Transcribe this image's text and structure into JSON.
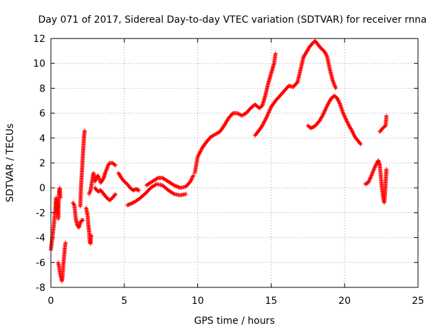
{
  "chart_data": {
    "type": "scatter",
    "title": "Day 071 of 2017, Sidereal Day-to-day VTEC variation (SDTVAR) for receiver rnna",
    "xlabel": "GPS time / hours",
    "ylabel": "SDTVAR / TECUs",
    "xlim": [
      0,
      25
    ],
    "ylim": [
      -8,
      12
    ],
    "x_ticks": [
      0,
      5,
      10,
      15,
      20,
      25
    ],
    "y_ticks": [
      -8,
      -6,
      -4,
      -2,
      0,
      2,
      4,
      6,
      8,
      10,
      12
    ],
    "grid": true,
    "marker": "+",
    "color": "#ff0000",
    "segments": [
      [
        [
          0.0,
          -5.0
        ],
        [
          0.1,
          -4.0
        ],
        [
          0.2,
          -3.0
        ],
        [
          0.3,
          -1.8
        ],
        [
          0.35,
          -0.8
        ],
        [
          0.4,
          -2.0
        ],
        [
          0.45,
          -1.0
        ],
        [
          0.5,
          -2.5
        ],
        [
          0.55,
          -0.5
        ],
        [
          0.6,
          0.0
        ],
        [
          0.65,
          -0.8
        ]
      ],
      [
        [
          0.5,
          -6.0
        ],
        [
          0.55,
          -6.3
        ],
        [
          0.6,
          -6.7
        ],
        [
          0.65,
          -7.0
        ],
        [
          0.7,
          -7.2
        ],
        [
          0.75,
          -7.5
        ],
        [
          0.8,
          -7.0
        ],
        [
          0.85,
          -6.2
        ],
        [
          0.9,
          -5.5
        ],
        [
          0.95,
          -4.8
        ],
        [
          1.0,
          -4.4
        ]
      ],
      [
        [
          1.5,
          -1.2
        ],
        [
          1.6,
          -1.4
        ],
        [
          1.7,
          -2.5
        ],
        [
          1.8,
          -3.0
        ],
        [
          1.9,
          -3.2
        ],
        [
          2.0,
          -2.8
        ],
        [
          2.1,
          -2.6
        ],
        [
          2.2,
          -2.6
        ]
      ],
      [
        [
          2.0,
          -1.5
        ],
        [
          2.05,
          0.0
        ],
        [
          2.1,
          1.0
        ],
        [
          2.15,
          2.0
        ],
        [
          2.2,
          3.0
        ],
        [
          2.25,
          4.0
        ],
        [
          2.3,
          4.6
        ]
      ],
      [
        [
          2.4,
          -1.6
        ],
        [
          2.5,
          -2.2
        ],
        [
          2.55,
          -3.0
        ],
        [
          2.6,
          -3.5
        ],
        [
          2.65,
          -4.3
        ],
        [
          2.7,
          -4.5
        ],
        [
          2.75,
          -3.8
        ]
      ],
      [
        [
          2.6,
          -0.5
        ],
        [
          2.7,
          -0.2
        ],
        [
          2.8,
          0.5
        ],
        [
          2.9,
          1.2
        ],
        [
          3.0,
          0.5
        ],
        [
          3.1,
          0.8
        ],
        [
          3.2,
          1.0
        ],
        [
          3.3,
          0.7
        ],
        [
          3.4,
          0.4
        ],
        [
          3.5,
          0.6
        ],
        [
          3.6,
          0.8
        ],
        [
          3.7,
          1.2
        ],
        [
          3.8,
          1.5
        ],
        [
          3.9,
          1.8
        ],
        [
          4.0,
          2.0
        ],
        [
          4.2,
          2.0
        ],
        [
          4.4,
          1.8
        ]
      ],
      [
        [
          3.0,
          0.0
        ],
        [
          3.2,
          -0.3
        ],
        [
          3.4,
          -0.2
        ],
        [
          3.6,
          -0.5
        ],
        [
          3.8,
          -0.8
        ],
        [
          4.0,
          -1.0
        ],
        [
          4.2,
          -0.8
        ],
        [
          4.4,
          -0.5
        ]
      ],
      [
        [
          4.6,
          1.2
        ],
        [
          4.8,
          0.8
        ],
        [
          5.0,
          0.5
        ],
        [
          5.2,
          0.3
        ],
        [
          5.4,
          0.0
        ],
        [
          5.6,
          -0.2
        ],
        [
          5.8,
          -0.1
        ],
        [
          6.0,
          -0.2
        ]
      ],
      [
        [
          5.2,
          -1.4
        ],
        [
          5.6,
          -1.2
        ],
        [
          6.0,
          -0.9
        ],
        [
          6.4,
          -0.5
        ],
        [
          6.8,
          0.0
        ],
        [
          7.2,
          0.3
        ],
        [
          7.6,
          0.2
        ],
        [
          8.0,
          -0.2
        ],
        [
          8.4,
          -0.5
        ],
        [
          8.8,
          -0.6
        ],
        [
          9.2,
          -0.5
        ]
      ],
      [
        [
          6.5,
          0.2
        ],
        [
          6.9,
          0.5
        ],
        [
          7.3,
          0.8
        ],
        [
          7.6,
          0.8
        ],
        [
          8.0,
          0.5
        ],
        [
          8.4,
          0.2
        ],
        [
          8.8,
          0.0
        ],
        [
          9.2,
          0.1
        ],
        [
          9.5,
          0.5
        ],
        [
          9.7,
          1.0
        ]
      ],
      [
        [
          9.8,
          1.2
        ],
        [
          10.0,
          2.5
        ],
        [
          10.3,
          3.2
        ],
        [
          10.6,
          3.7
        ],
        [
          10.9,
          4.1
        ],
        [
          11.2,
          4.3
        ],
        [
          11.5,
          4.5
        ],
        [
          11.8,
          5.0
        ],
        [
          12.1,
          5.6
        ],
        [
          12.4,
          6.0
        ],
        [
          12.7,
          6.0
        ],
        [
          13.0,
          5.8
        ],
        [
          13.3,
          6.0
        ],
        [
          13.6,
          6.4
        ],
        [
          13.9,
          6.7
        ],
        [
          14.2,
          6.4
        ],
        [
          14.4,
          6.6
        ],
        [
          14.6,
          7.4
        ],
        [
          14.8,
          8.4
        ],
        [
          15.0,
          9.2
        ],
        [
          15.2,
          10.0
        ],
        [
          15.3,
          10.8
        ]
      ],
      [
        [
          13.9,
          4.2
        ],
        [
          14.1,
          4.5
        ],
        [
          14.4,
          5.0
        ],
        [
          14.7,
          5.7
        ],
        [
          15.0,
          6.5
        ],
        [
          15.3,
          7.0
        ],
        [
          15.6,
          7.4
        ],
        [
          15.9,
          7.8
        ],
        [
          16.2,
          8.2
        ],
        [
          16.5,
          8.1
        ],
        [
          16.8,
          8.5
        ],
        [
          17.0,
          9.5
        ],
        [
          17.2,
          10.5
        ],
        [
          17.4,
          10.9
        ],
        [
          17.6,
          11.3
        ],
        [
          17.8,
          11.6
        ],
        [
          18.0,
          11.8
        ],
        [
          18.2,
          11.5
        ],
        [
          18.4,
          11.2
        ],
        [
          18.6,
          11.0
        ],
        [
          18.8,
          10.6
        ],
        [
          19.0,
          9.5
        ],
        [
          19.2,
          8.6
        ],
        [
          19.4,
          8.0
        ]
      ],
      [
        [
          17.5,
          5.0
        ],
        [
          17.7,
          4.8
        ],
        [
          17.9,
          4.9
        ],
        [
          18.1,
          5.1
        ],
        [
          18.3,
          5.4
        ],
        [
          18.5,
          5.8
        ],
        [
          18.7,
          6.3
        ],
        [
          18.9,
          6.8
        ],
        [
          19.1,
          7.2
        ],
        [
          19.3,
          7.4
        ],
        [
          19.5,
          7.2
        ],
        [
          19.7,
          6.7
        ],
        [
          19.9,
          6.0
        ],
        [
          20.1,
          5.5
        ],
        [
          20.3,
          5.0
        ],
        [
          20.5,
          4.6
        ],
        [
          20.7,
          4.1
        ],
        [
          20.9,
          3.8
        ],
        [
          21.1,
          3.5
        ]
      ],
      [
        [
          21.4,
          0.3
        ],
        [
          21.6,
          0.4
        ],
        [
          21.8,
          0.9
        ],
        [
          22.0,
          1.5
        ],
        [
          22.2,
          2.0
        ],
        [
          22.3,
          2.2
        ],
        [
          22.4,
          1.8
        ],
        [
          22.5,
          0.5
        ],
        [
          22.6,
          -0.6
        ],
        [
          22.65,
          -0.9
        ],
        [
          22.7,
          -1.2
        ],
        [
          22.75,
          -0.5
        ],
        [
          22.8,
          0.5
        ],
        [
          22.85,
          1.5
        ]
      ],
      [
        [
          22.4,
          4.5
        ],
        [
          22.6,
          4.8
        ],
        [
          22.8,
          5.0
        ],
        [
          22.85,
          5.8
        ]
      ]
    ]
  }
}
